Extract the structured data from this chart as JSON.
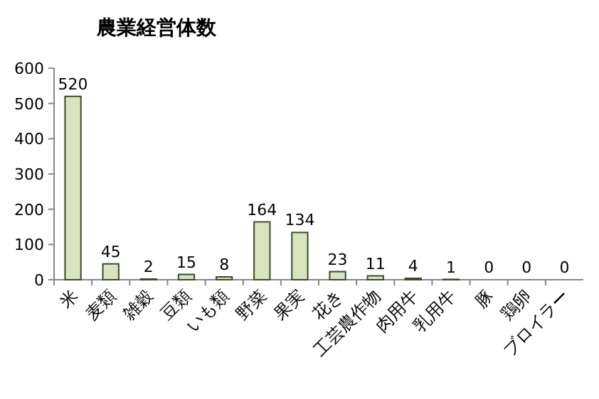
{
  "chart_data": {
    "type": "bar",
    "title": "農業経営体数",
    "categories": [
      "米",
      "麦類",
      "雑穀",
      "豆類",
      "いも類",
      "野菜",
      "果実",
      "花き",
      "工芸農作物",
      "肉用牛",
      "乳用牛",
      "豚",
      "鶏卵",
      "ブロイラー"
    ],
    "values": [
      520,
      45,
      2,
      15,
      8,
      164,
      134,
      23,
      11,
      4,
      1,
      0,
      0,
      0
    ],
    "color": "#d7e4bd",
    "ylim": [
      0,
      600
    ],
    "yticks": [
      0,
      100,
      200,
      300,
      400,
      500,
      600
    ],
    "data_labels": true
  }
}
